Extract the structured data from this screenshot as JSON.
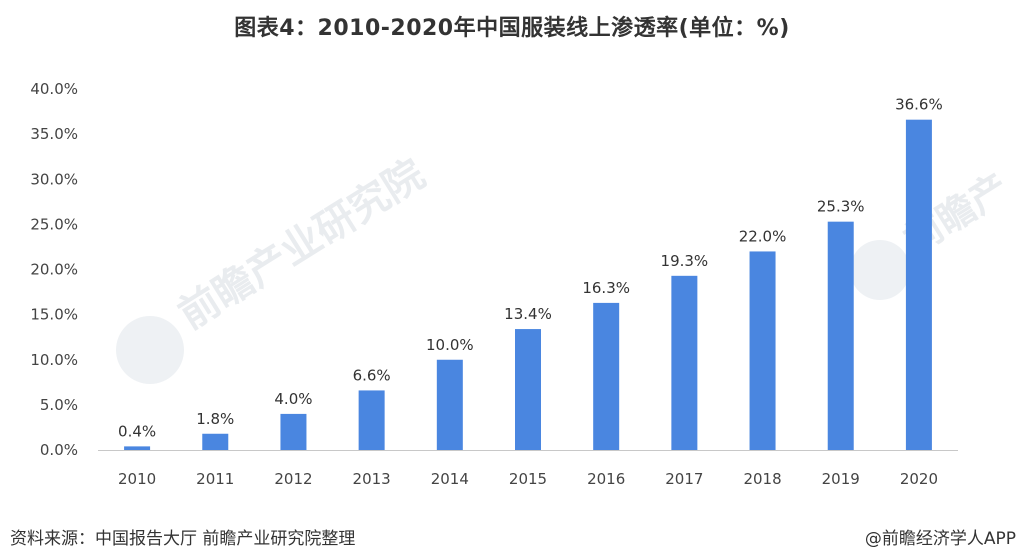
{
  "title": "图表4：2010-2020年中国服装线上渗透率(单位：%)",
  "source": "资料来源：中国报告大厅 前瞻产业研究院整理",
  "credit": "@前瞻经济学人APP",
  "watermark": {
    "logo_text_1": "前瞻产业研究院",
    "logo_text_2": "前瞻产"
  },
  "colors": {
    "bar": "#4a86e0",
    "axis": "#c8c8c8",
    "text": "#333333"
  },
  "chart_data": {
    "type": "bar",
    "title": "图表4：2010-2020年中国服装线上渗透率(单位：%)",
    "xlabel": "",
    "ylabel": "",
    "categories": [
      "2010",
      "2011",
      "2012",
      "2013",
      "2014",
      "2015",
      "2016",
      "2017",
      "2018",
      "2019",
      "2020"
    ],
    "values": [
      0.4,
      1.8,
      4.0,
      6.6,
      10.0,
      13.4,
      16.3,
      19.3,
      22.0,
      25.3,
      36.6
    ],
    "data_labels": [
      "0.4%",
      "1.8%",
      "4.0%",
      "6.6%",
      "10.0%",
      "13.4%",
      "16.3%",
      "19.3%",
      "22.0%",
      "25.3%",
      "36.6%"
    ],
    "ylim": [
      0,
      40
    ],
    "yticks": [
      0,
      5,
      10,
      15,
      20,
      25,
      30,
      35,
      40
    ],
    "ytick_labels": [
      "0.0%",
      "5.0%",
      "10.0%",
      "15.0%",
      "20.0%",
      "25.0%",
      "30.0%",
      "35.0%",
      "40.0%"
    ],
    "grid": false,
    "legend": "none"
  }
}
